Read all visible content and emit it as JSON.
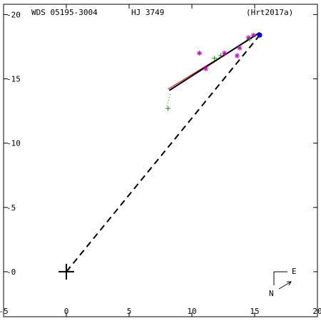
{
  "header": {
    "wds": "WDS 05195-3004",
    "name": "HJ 3749",
    "ref": "(Hrt2017a)"
  },
  "compass": {
    "north": "N",
    "east": "E"
  },
  "chart_data": {
    "type": "scatter",
    "title": "",
    "xlim": [
      -5,
      20
    ],
    "ylim": [
      -3.5,
      20.8
    ],
    "x_reversed": false,
    "grid": false,
    "x_ticks": [
      -5,
      0,
      5,
      10,
      15,
      20
    ],
    "y_ticks": [
      0,
      5,
      10,
      15,
      20
    ],
    "primary": [
      0,
      0
    ],
    "current_position": [
      15.4,
      18.4
    ],
    "orbit_segment": [
      [
        8.2,
        14.1
      ],
      [
        15.4,
        18.6
      ]
    ],
    "orbit_segment_red": [
      [
        8.1,
        14.2
      ],
      [
        15.3,
        18.5
      ]
    ],
    "line_of_nodes": [
      [
        0,
        0
      ],
      [
        15.4,
        18.4
      ]
    ],
    "residual_segment": [
      [
        8.0,
        12.9
      ],
      [
        8.3,
        13.9
      ]
    ],
    "series": [
      {
        "marker": "asterisk",
        "color": "#cc00cc",
        "points": [
          [
            10.6,
            17.0
          ],
          [
            11.1,
            15.8
          ],
          [
            12.6,
            17.0
          ],
          [
            13.6,
            16.8
          ],
          [
            13.8,
            17.4
          ],
          [
            14.5,
            18.2
          ],
          [
            14.9,
            18.4
          ]
        ]
      },
      {
        "marker": "plus",
        "color": "#009900",
        "points": [
          [
            8.1,
            12.7
          ],
          [
            11.8,
            16.6
          ],
          [
            12.3,
            16.8
          ],
          [
            14.6,
            18.1
          ]
        ]
      }
    ]
  }
}
